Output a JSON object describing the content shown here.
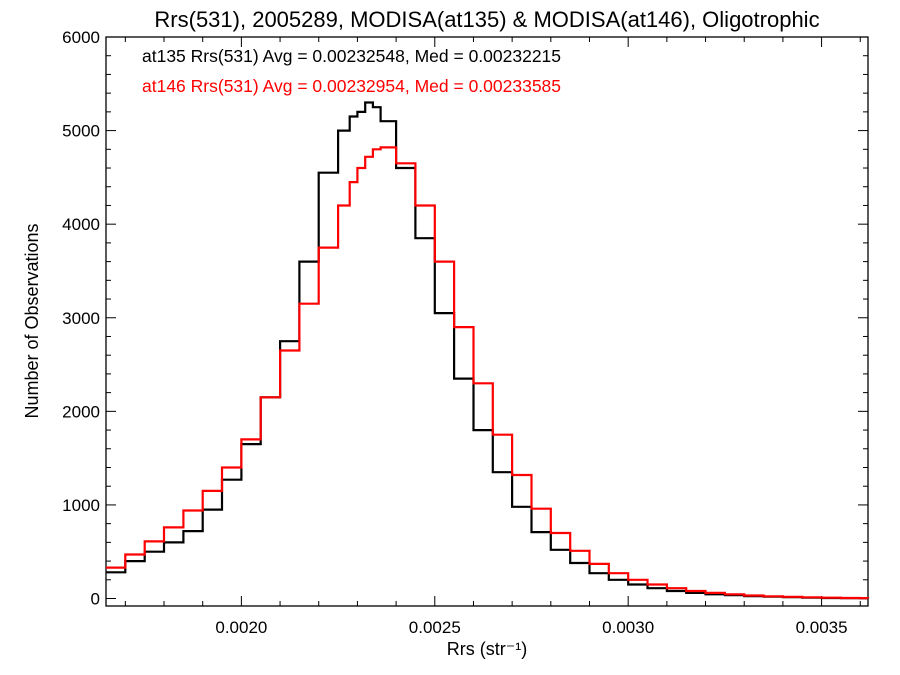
{
  "chart_data": {
    "type": "line",
    "title": "Rrs(531), 2005289, MODISA(at135) & MODISA(at146), Oligotrophic",
    "xlabel": "Rrs (str⁻¹)",
    "ylabel": "Number of Observations",
    "xlim": [
      0.00165,
      0.00362
    ],
    "ylim": [
      -80,
      6000
    ],
    "xticks": [
      0.002,
      0.0025,
      0.003,
      0.0035
    ],
    "xtick_labels": [
      "0.0020",
      "0.0025",
      "0.0030",
      "0.0035"
    ],
    "yticks": [
      0,
      1000,
      2000,
      3000,
      4000,
      5000,
      6000
    ],
    "ytick_labels": [
      "0",
      "1000",
      "2000",
      "3000",
      "4000",
      "5000",
      "6000"
    ],
    "grid": false,
    "series": [
      {
        "name": "at135",
        "color": "#000000",
        "annotation": "at135 Rrs(531) Avg = 0.00232548, Med = 0.00232215",
        "x": [
          0.00165,
          0.0017,
          0.00175,
          0.0018,
          0.00185,
          0.0019,
          0.00195,
          0.002,
          0.00205,
          0.0021,
          0.00215,
          0.0022,
          0.00225,
          0.00228,
          0.0023,
          0.00232,
          0.00234,
          0.00236,
          0.0024,
          0.00245,
          0.0025,
          0.00255,
          0.0026,
          0.00265,
          0.0027,
          0.00275,
          0.0028,
          0.00285,
          0.0029,
          0.00295,
          0.003,
          0.00305,
          0.0031,
          0.00315,
          0.0032,
          0.00325,
          0.0033,
          0.00335,
          0.0034,
          0.00345,
          0.0035,
          0.00355,
          0.0036,
          0.00362
        ],
        "y": [
          280,
          400,
          500,
          600,
          720,
          950,
          1270,
          1650,
          2150,
          2750,
          3600,
          4550,
          5000,
          5150,
          5200,
          5300,
          5250,
          5100,
          4600,
          3850,
          3050,
          2350,
          1800,
          1350,
          980,
          710,
          520,
          380,
          270,
          200,
          150,
          110,
          80,
          60,
          45,
          35,
          25,
          20,
          15,
          10,
          6,
          4,
          2,
          1
        ]
      },
      {
        "name": "at146",
        "color": "#ff0000",
        "annotation": "at146 Rrs(531) Avg = 0.00232954, Med = 0.00233585",
        "x": [
          0.00165,
          0.0017,
          0.00175,
          0.0018,
          0.00185,
          0.0019,
          0.00195,
          0.002,
          0.00205,
          0.0021,
          0.00215,
          0.0022,
          0.00225,
          0.00228,
          0.0023,
          0.00232,
          0.00234,
          0.00236,
          0.0024,
          0.00245,
          0.0025,
          0.00255,
          0.0026,
          0.00265,
          0.0027,
          0.00275,
          0.0028,
          0.00285,
          0.0029,
          0.00295,
          0.003,
          0.00305,
          0.0031,
          0.00315,
          0.0032,
          0.00325,
          0.0033,
          0.00335,
          0.0034,
          0.00345,
          0.0035,
          0.00355,
          0.0036,
          0.00362
        ],
        "y": [
          330,
          470,
          610,
          760,
          940,
          1150,
          1400,
          1700,
          2150,
          2650,
          3150,
          3750,
          4200,
          4450,
          4600,
          4720,
          4800,
          4820,
          4650,
          4200,
          3600,
          2900,
          2300,
          1750,
          1320,
          960,
          700,
          510,
          370,
          270,
          200,
          150,
          110,
          80,
          60,
          45,
          32,
          24,
          18,
          13,
          9,
          6,
          4,
          2
        ]
      }
    ]
  }
}
